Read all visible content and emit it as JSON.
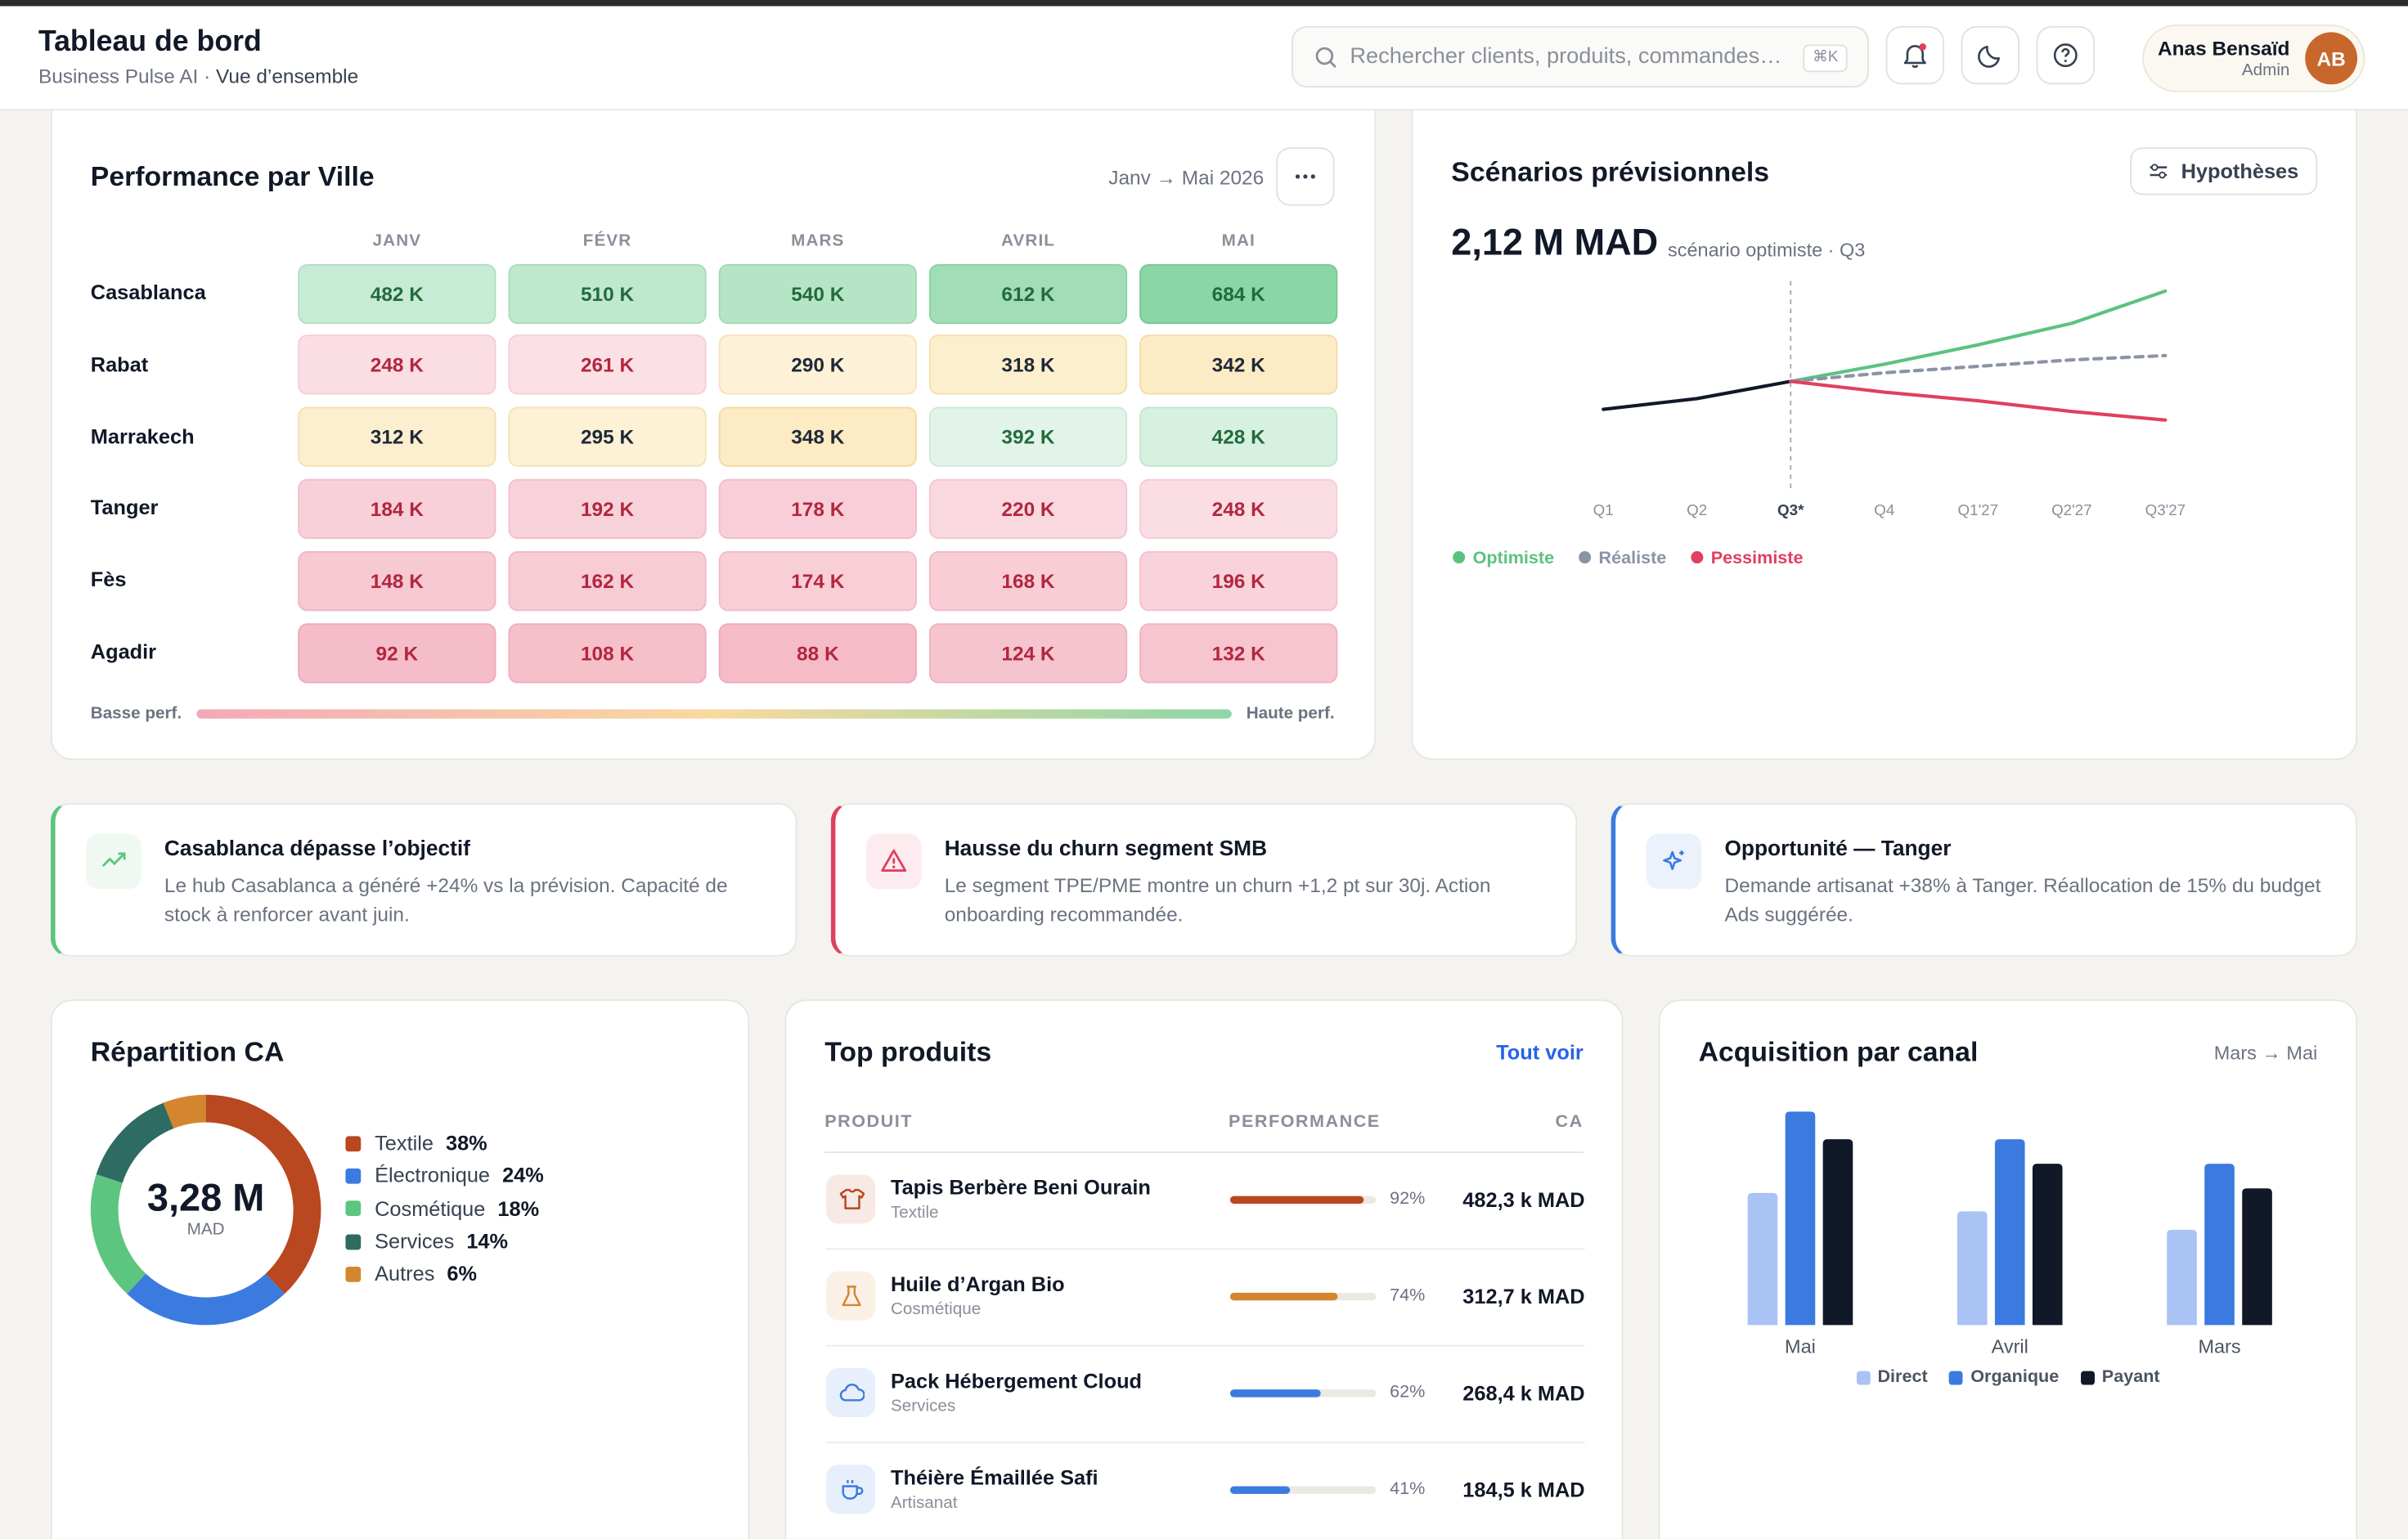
{
  "header": {
    "title": "Tableau de bord",
    "source": "Business Pulse AI ·",
    "page": "Vue d’ensemble",
    "search_placeholder": "Rechercher clients, produits, commandes…",
    "shortcut": "⌘K",
    "user": {
      "name": "Anas Bensaïd",
      "role": "Admin",
      "initials": "AB"
    }
  },
  "city_performance": {
    "type": "heatmap",
    "title": "Performance par Ville",
    "period": "Janv → Mai 2026",
    "columns": [
      "JANV",
      "FÉVR",
      "MARS",
      "AVRIL",
      "MAI"
    ],
    "rows": [
      "Casablanca",
      "Rabat",
      "Marrakech",
      "Tanger",
      "Fès",
      "Agadir"
    ],
    "values": [
      [
        482,
        510,
        540,
        612,
        684
      ],
      [
        248,
        261,
        290,
        318,
        342
      ],
      [
        312,
        295,
        348,
        392,
        428
      ],
      [
        184,
        192,
        178,
        220,
        248
      ],
      [
        148,
        162,
        174,
        168,
        196
      ],
      [
        92,
        108,
        88,
        124,
        132
      ]
    ],
    "value_labels": [
      [
        "482 K",
        "510 K",
        "540 K",
        "612 K",
        "684 K"
      ],
      [
        "248 K",
        "261 K",
        "290 K",
        "318 K",
        "342 K"
      ],
      [
        "312 K",
        "295 K",
        "348 K",
        "392 K",
        "428 K"
      ],
      [
        "184 K",
        "192 K",
        "178 K",
        "220 K",
        "248 K"
      ],
      [
        "148 K",
        "162 K",
        "174 K",
        "168 K",
        "196 K"
      ],
      [
        "92 K",
        "108 K",
        "88 K",
        "124 K",
        "132 K"
      ]
    ],
    "legend": [
      "Basse perf.",
      "Haute perf."
    ]
  },
  "forecast": {
    "type": "line",
    "title": "Scénarios prévisionnels",
    "button": "Hypothèses",
    "kpi": "2,12 M MAD",
    "kpi_note": "scénario optimiste · Q3",
    "categories": [
      "Q1",
      "Q2",
      "Q3*",
      "Q4",
      "Q1'27",
      "Q2'27",
      "Q3'27"
    ],
    "ylim": [
      0,
      100
    ],
    "series": [
      {
        "color": "#111827",
        "values": [
          36,
          41,
          49,
          null,
          null,
          null,
          null
        ]
      },
      {
        "name": "Optimiste",
        "color": "#5cc280",
        "values": [
          null,
          null,
          49,
          57,
          66,
          76,
          91
        ]
      },
      {
        "name": "Réaliste",
        "color": "#8b93a7",
        "dash": true,
        "values": [
          null,
          null,
          49,
          53,
          56,
          59,
          61
        ]
      },
      {
        "name": "Pessimiste",
        "color": "#e0405e",
        "values": [
          null,
          null,
          49,
          44,
          40,
          35,
          31
        ]
      }
    ]
  },
  "insights": [
    {
      "title": "Casablanca dépasse l’objectif",
      "text": "Le hub Casablanca a généré +24% vs la prévision. Capacité de stock à renforcer avant juin.",
      "color": "#5cc57f"
    },
    {
      "title": "Hausse du churn segment SMB",
      "text": "Le segment TPE/PME montre un churn +1,2 pt sur 30j. Action onboarding recommandée.",
      "color": "#e0405e"
    },
    {
      "title": "Opportunité — Tanger",
      "text": "Demande artisanat +38% à Tanger. Réallocation de 15% du budget Ads suggérée.",
      "color": "#3b7be0"
    }
  ],
  "revenue_split": {
    "type": "donut",
    "title": "Répartition CA",
    "center_value": "3,28 M",
    "center_unit": "MAD",
    "categories": [
      "Textile",
      "Électronique",
      "Cosmétique",
      "Services",
      "Autres"
    ],
    "values": [
      38,
      24,
      18,
      14,
      6
    ],
    "value_labels": [
      "38%",
      "24%",
      "18%",
      "14%",
      "6%"
    ],
    "colors": [
      "#b9471f",
      "#3b7be0",
      "#5cc57f",
      "#2e6b62",
      "#d4862e"
    ]
  },
  "top_products": {
    "title": "Top produits",
    "link": "Tout voir",
    "columns": [
      "PRODUIT",
      "PERFORMANCE",
      "CA"
    ],
    "rows": [
      {
        "name": "Tapis Berbère Beni Ourain",
        "category": "Textile",
        "performance": 92,
        "performance_label": "92%",
        "revenue": "482,3 k MAD",
        "color": "#b9471f"
      },
      {
        "name": "Huile d’Argan Bio",
        "category": "Cosmétique",
        "performance": 74,
        "performance_label": "74%",
        "revenue": "312,7 k MAD",
        "color": "#d4862e"
      },
      {
        "name": "Pack Hébergement Cloud",
        "category": "Services",
        "performance": 62,
        "performance_label": "62%",
        "revenue": "268,4 k MAD",
        "color": "#3b7be0"
      },
      {
        "name": "Théière Émaillée Safi",
        "category": "Artisanat",
        "performance": 41,
        "performance_label": "41%",
        "revenue": "184,5 k MAD",
        "color": "#3b7be0"
      }
    ]
  },
  "acquisition": {
    "type": "bar",
    "title": "Acquisition par canal",
    "period": "Mars → Mai",
    "categories": [
      "Mai",
      "Avril",
      "Mars"
    ],
    "ylim": [
      0,
      150
    ],
    "series": [
      {
        "name": "Direct",
        "color": "#a9c3f4",
        "values": [
          86,
          74,
          62
        ]
      },
      {
        "name": "Organique",
        "color": "#3b7be0",
        "values": [
          139,
          121,
          105
        ]
      },
      {
        "name": "Payant",
        "color": "#111827",
        "values": [
          121,
          105,
          89
        ]
      }
    ]
  }
}
